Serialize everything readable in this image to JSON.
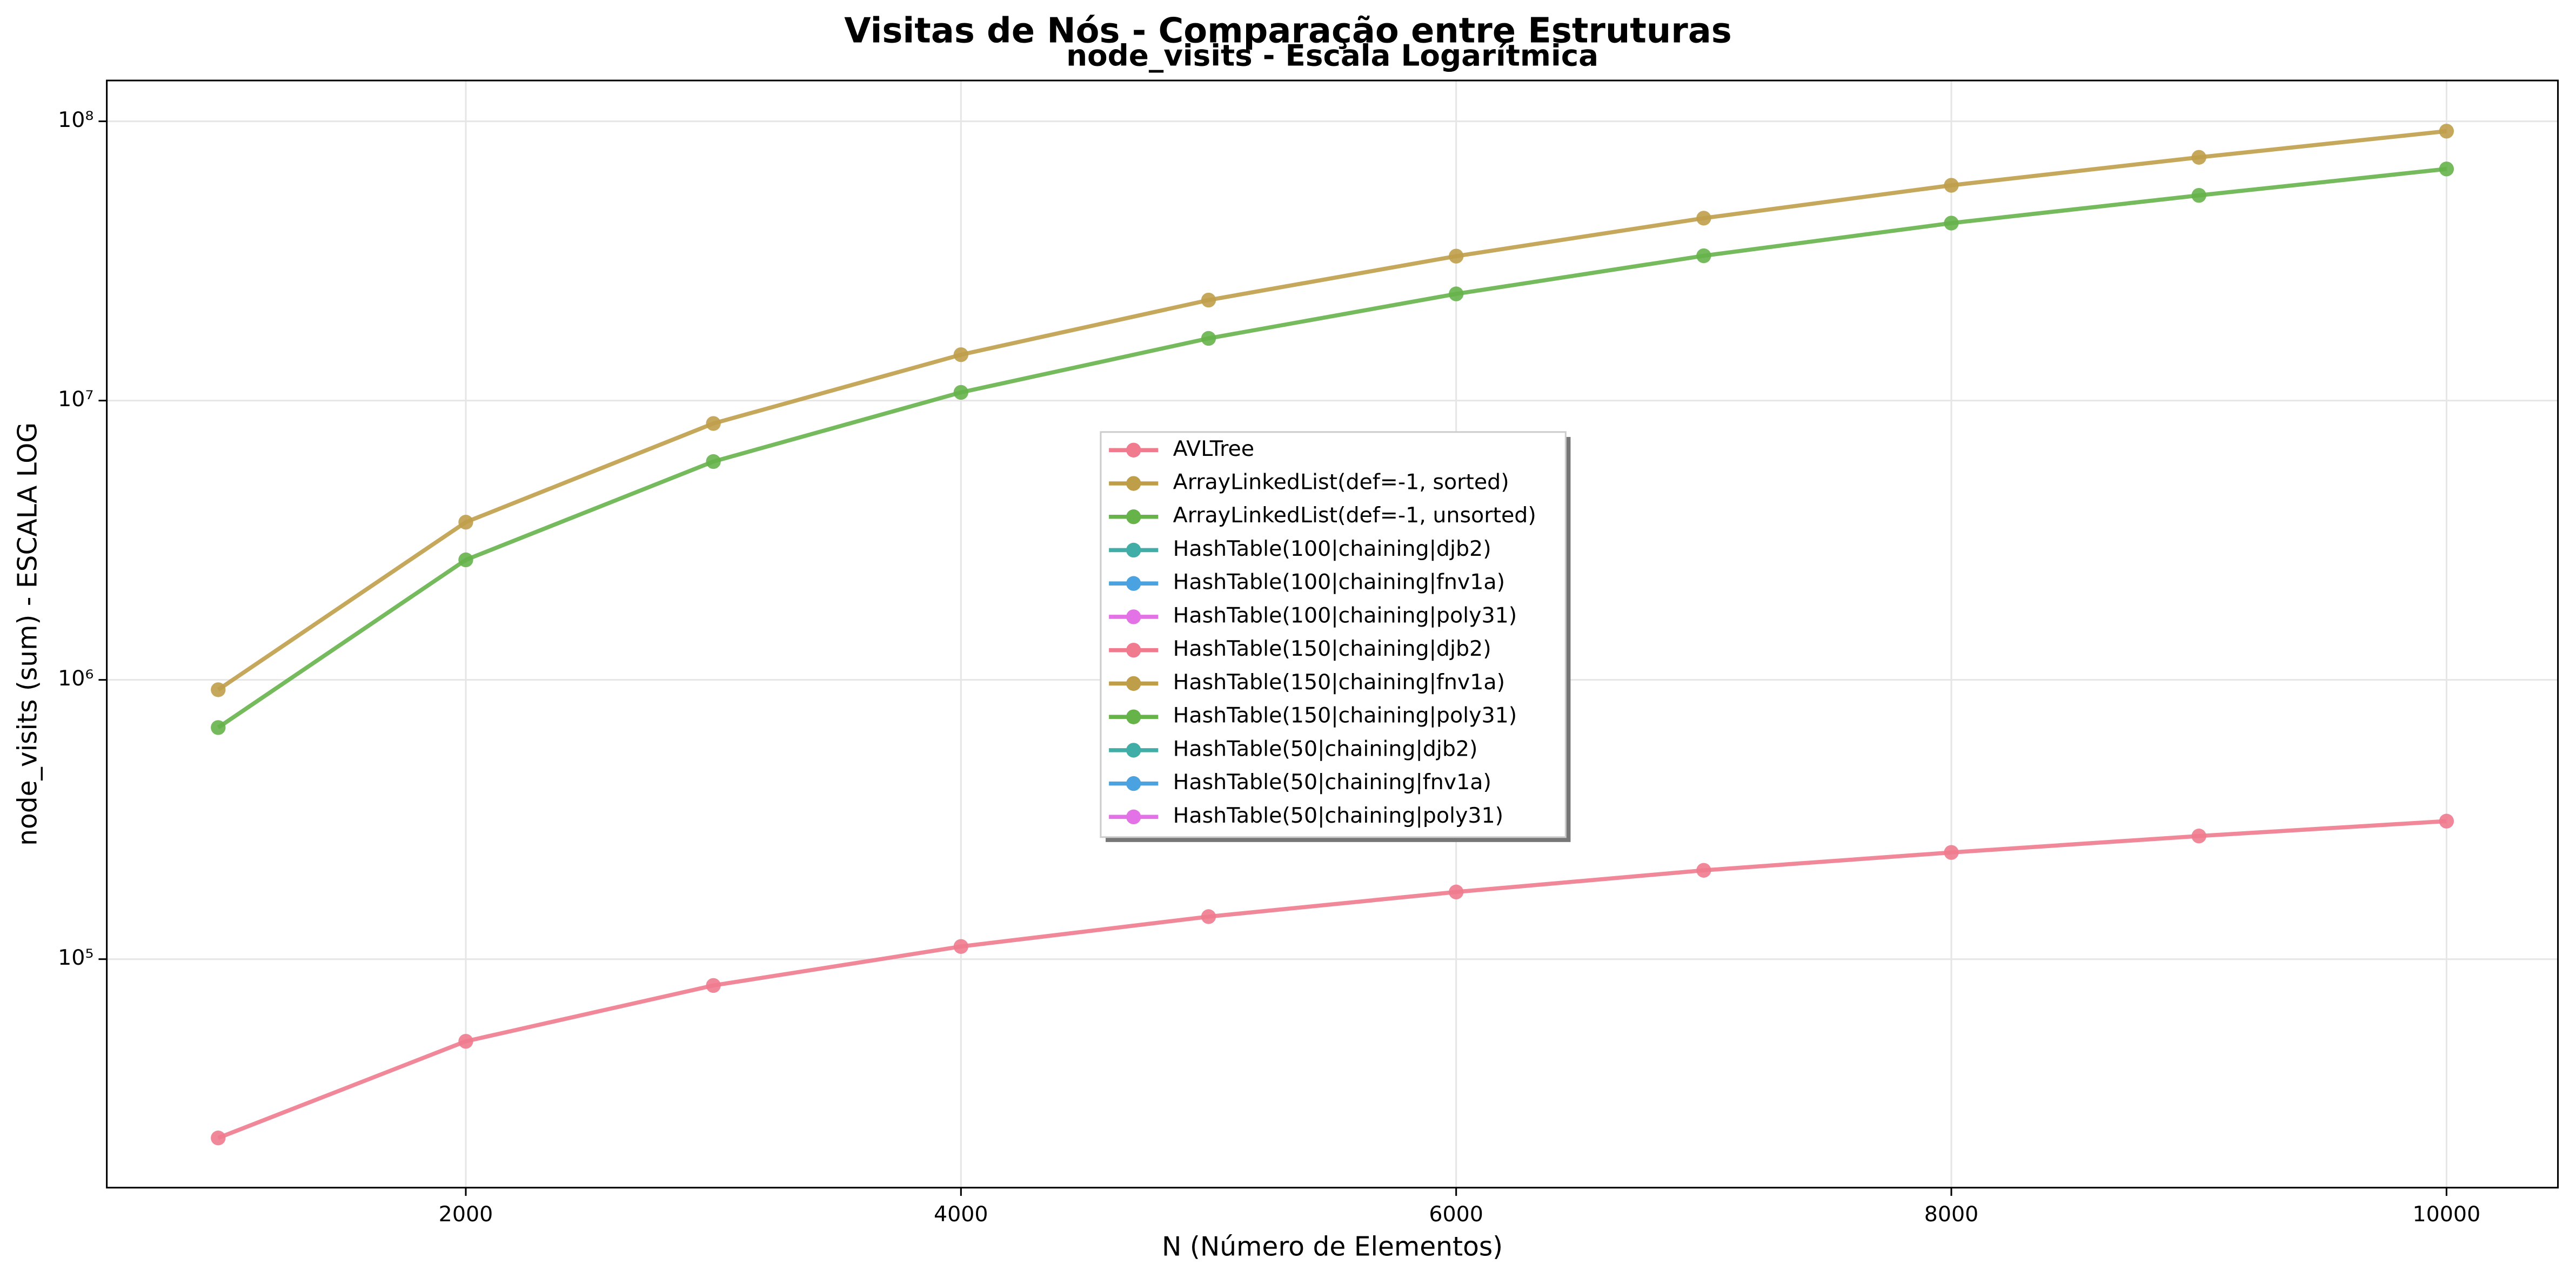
{
  "chart_data": {
    "type": "line",
    "title": "Visitas de Nós - Comparação entre Estruturas",
    "subtitle": "node_visits - Escala Logarítmica",
    "xlabel": "N (Número de Elementos)",
    "ylabel": "node_visits (sum) - ESCALA LOG",
    "x": [
      1000,
      2000,
      3000,
      4000,
      5000,
      6000,
      7000,
      8000,
      9000,
      10000
    ],
    "xlim": [
      550,
      10450
    ],
    "xticks": [
      2000,
      4000,
      6000,
      8000,
      10000
    ],
    "ylim": [
      15200,
      140000000
    ],
    "yticks": [
      {
        "value": 100000,
        "label": "10⁵"
      },
      {
        "value": 1000000,
        "label": "10⁶"
      },
      {
        "value": 10000000,
        "label": "10⁷"
      },
      {
        "value": 100000000,
        "label": "10⁸"
      }
    ],
    "log_y": true,
    "grid": true,
    "legend": "center",
    "series": [
      {
        "name": "AVLTree",
        "color": "#f07b8f",
        "values": [
          22900,
          50800,
          80500,
          111000,
          142000,
          174000,
          208000,
          241000,
          276000,
          312000
        ]
      },
      {
        "name": "ArrayLinkedList(def=-1, sorted)",
        "color": "#bf9e4a",
        "values": [
          922000,
          3670000,
          8280000,
          14600000,
          22900000,
          32900000,
          45000000,
          59000000,
          74300000,
          92200000
        ]
      },
      {
        "name": "ArrayLinkedList(def=-1, unsorted)",
        "color": "#66b34a",
        "values": [
          675000,
          2690000,
          6050000,
          10700000,
          16700000,
          24100000,
          33000000,
          43200000,
          54300000,
          67500000
        ]
      },
      {
        "name": "HashTable(100|chaining|djb2)",
        "color": "#40aea6",
        "values": [
          null,
          null,
          null,
          null,
          null,
          null,
          null,
          null,
          null,
          null
        ]
      },
      {
        "name": "HashTable(100|chaining|fnv1a)",
        "color": "#4aa3e0",
        "values": [
          null,
          null,
          null,
          null,
          null,
          null,
          null,
          null,
          null,
          null
        ]
      },
      {
        "name": "HashTable(100|chaining|poly31)",
        "color": "#e272e6",
        "values": [
          null,
          null,
          null,
          null,
          null,
          null,
          null,
          null,
          null,
          null
        ]
      },
      {
        "name": "HashTable(150|chaining|djb2)",
        "color": "#f07b8f",
        "values": [
          null,
          null,
          null,
          null,
          null,
          null,
          null,
          null,
          null,
          null
        ]
      },
      {
        "name": "HashTable(150|chaining|fnv1a)",
        "color": "#bf9e4a",
        "values": [
          null,
          null,
          null,
          null,
          null,
          null,
          null,
          null,
          null,
          null
        ]
      },
      {
        "name": "HashTable(150|chaining|poly31)",
        "color": "#66b34a",
        "values": [
          null,
          null,
          null,
          null,
          null,
          null,
          null,
          null,
          null,
          null
        ]
      },
      {
        "name": "HashTable(50|chaining|djb2)",
        "color": "#40aea6",
        "values": [
          null,
          null,
          null,
          null,
          null,
          null,
          null,
          null,
          null,
          null
        ]
      },
      {
        "name": "HashTable(50|chaining|fnv1a)",
        "color": "#4aa3e0",
        "values": [
          null,
          null,
          null,
          null,
          null,
          null,
          null,
          null,
          null,
          null
        ]
      },
      {
        "name": "HashTable(50|chaining|poly31)",
        "color": "#e272e6",
        "values": [
          null,
          null,
          null,
          null,
          null,
          null,
          null,
          null,
          null,
          null
        ]
      }
    ]
  }
}
